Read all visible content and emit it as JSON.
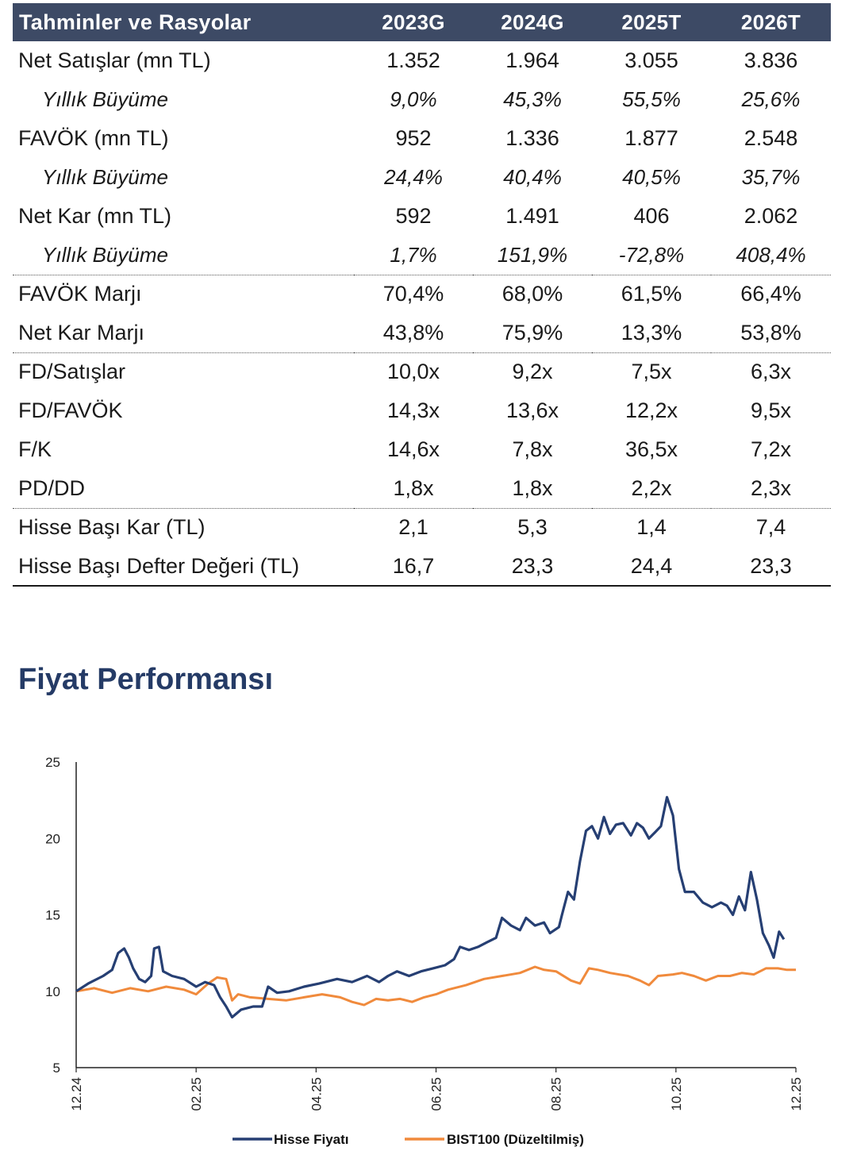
{
  "table": {
    "header": [
      "Tahminler ve Rasyolar",
      "2023G",
      "2024G",
      "2025T",
      "2026T"
    ],
    "rows": [
      {
        "label": "Net Satışlar (mn TL)",
        "values": [
          "1.352",
          "1.964",
          "3.055",
          "3.836"
        ]
      },
      {
        "label": "Yıllık Büyüme",
        "values": [
          "9,0%",
          "45,3%",
          "55,5%",
          "25,6%"
        ]
      },
      {
        "label": "FAVÖK (mn TL)",
        "values": [
          "952",
          "1.336",
          "1.877",
          "2.548"
        ]
      },
      {
        "label": "Yıllık Büyüme",
        "values": [
          "24,4%",
          "40,4%",
          "40,5%",
          "35,7%"
        ]
      },
      {
        "label": "Net Kar (mn TL)",
        "values": [
          "592",
          "1.491",
          "406",
          "2.062"
        ]
      },
      {
        "label": "Yıllık Büyüme",
        "values": [
          "1,7%",
          "151,9%",
          "-72,8%",
          "408,4%"
        ]
      },
      {
        "label": "FAVÖK Marjı",
        "values": [
          "70,4%",
          "68,0%",
          "61,5%",
          "66,4%"
        ]
      },
      {
        "label": "Net Kar Marjı",
        "values": [
          "43,8%",
          "75,9%",
          "13,3%",
          "53,8%"
        ]
      },
      {
        "label": "FD/Satışlar",
        "values": [
          "10,0x",
          "9,2x",
          "7,5x",
          "6,3x"
        ]
      },
      {
        "label": "FD/FAVÖK",
        "values": [
          "14,3x",
          "13,6x",
          "12,2x",
          "9,5x"
        ]
      },
      {
        "label": "F/K",
        "values": [
          "14,6x",
          "7,8x",
          "36,5x",
          "7,2x"
        ]
      },
      {
        "label": "PD/DD",
        "values": [
          "1,8x",
          "1,8x",
          "2,2x",
          "2,3x"
        ]
      },
      {
        "label": "Hisse Başı Kar (TL)",
        "values": [
          "2,1",
          "5,3",
          "1,4",
          "7,4"
        ]
      },
      {
        "label": "Hisse Başı Defter Değeri (TL)",
        "values": [
          "16,7",
          "23,3",
          "24,4",
          "23,3"
        ]
      }
    ]
  },
  "performance": {
    "title": "Fiyat Performansı"
  },
  "chart_data": {
    "type": "line",
    "title": "Fiyat Performansı",
    "xlabel": "",
    "ylabel": "",
    "ylim": [
      5,
      25
    ],
    "yticks": [
      5,
      10,
      15,
      20,
      25
    ],
    "xticks": [
      "12.24",
      "02.25",
      "04.25",
      "06.25",
      "08.25",
      "10.25",
      "12.25"
    ],
    "xlim": [
      0,
      12
    ],
    "legend_position": "bottom",
    "series": [
      {
        "name": "Hisse Fiyatı",
        "color": "#263f73",
        "points": [
          [
            0,
            10
          ],
          [
            0.2,
            10.5
          ],
          [
            0.45,
            11.0
          ],
          [
            0.6,
            11.4
          ],
          [
            0.7,
            12.5
          ],
          [
            0.8,
            12.8
          ],
          [
            0.88,
            12.2
          ],
          [
            0.95,
            11.5
          ],
          [
            1.05,
            10.8
          ],
          [
            1.15,
            10.6
          ],
          [
            1.25,
            11.0
          ],
          [
            1.3,
            12.8
          ],
          [
            1.38,
            12.9
          ],
          [
            1.45,
            11.3
          ],
          [
            1.6,
            11.0
          ],
          [
            1.8,
            10.8
          ],
          [
            2.0,
            10.3
          ],
          [
            2.15,
            10.6
          ],
          [
            2.3,
            10.4
          ],
          [
            2.4,
            9.6
          ],
          [
            2.5,
            9.0
          ],
          [
            2.6,
            8.3
          ],
          [
            2.75,
            8.8
          ],
          [
            2.95,
            9.0
          ],
          [
            3.1,
            9.0
          ],
          [
            3.2,
            10.3
          ],
          [
            3.35,
            9.9
          ],
          [
            3.55,
            10.0
          ],
          [
            3.8,
            10.3
          ],
          [
            4.05,
            10.5
          ],
          [
            4.35,
            10.8
          ],
          [
            4.6,
            10.6
          ],
          [
            4.85,
            11.0
          ],
          [
            5.05,
            10.6
          ],
          [
            5.2,
            11.0
          ],
          [
            5.35,
            11.3
          ],
          [
            5.55,
            11.0
          ],
          [
            5.75,
            11.3
          ],
          [
            5.95,
            11.5
          ],
          [
            6.15,
            11.7
          ],
          [
            6.3,
            12.1
          ],
          [
            6.4,
            12.9
          ],
          [
            6.55,
            12.7
          ],
          [
            6.7,
            12.9
          ],
          [
            6.85,
            13.2
          ],
          [
            7.0,
            13.5
          ],
          [
            7.1,
            14.8
          ],
          [
            7.25,
            14.3
          ],
          [
            7.4,
            14.0
          ],
          [
            7.5,
            14.8
          ],
          [
            7.65,
            14.3
          ],
          [
            7.8,
            14.5
          ],
          [
            7.9,
            13.8
          ],
          [
            8.05,
            14.2
          ],
          [
            8.1,
            15.0
          ],
          [
            8.2,
            16.5
          ],
          [
            8.3,
            16.0
          ],
          [
            8.4,
            18.5
          ],
          [
            8.5,
            20.5
          ],
          [
            8.6,
            20.8
          ],
          [
            8.7,
            20.0
          ],
          [
            8.8,
            21.4
          ],
          [
            8.9,
            20.3
          ],
          [
            9.0,
            20.9
          ],
          [
            9.12,
            21.0
          ],
          [
            9.25,
            20.2
          ],
          [
            9.35,
            21.0
          ],
          [
            9.45,
            20.7
          ],
          [
            9.55,
            20.0
          ],
          [
            9.65,
            20.4
          ],
          [
            9.75,
            20.8
          ],
          [
            9.85,
            22.7
          ],
          [
            9.95,
            21.5
          ],
          [
            10.05,
            18.0
          ],
          [
            10.15,
            16.5
          ],
          [
            10.3,
            16.5
          ],
          [
            10.45,
            15.8
          ],
          [
            10.6,
            15.5
          ],
          [
            10.75,
            15.8
          ],
          [
            10.85,
            15.6
          ],
          [
            10.95,
            15.0
          ],
          [
            11.05,
            16.2
          ],
          [
            11.15,
            15.3
          ],
          [
            11.25,
            17.8
          ],
          [
            11.35,
            16.0
          ],
          [
            11.45,
            13.8
          ],
          [
            11.55,
            13.0
          ],
          [
            11.63,
            12.2
          ],
          [
            11.72,
            13.9
          ],
          [
            11.8,
            13.4
          ]
        ]
      },
      {
        "name": "BIST100 (Düzeltilmiş)",
        "color": "#f08a3c",
        "points": [
          [
            0,
            10
          ],
          [
            0.3,
            10.2
          ],
          [
            0.6,
            9.9
          ],
          [
            0.9,
            10.2
          ],
          [
            1.2,
            10.0
          ],
          [
            1.5,
            10.3
          ],
          [
            1.8,
            10.1
          ],
          [
            2.0,
            9.8
          ],
          [
            2.2,
            10.5
          ],
          [
            2.35,
            10.9
          ],
          [
            2.5,
            10.8
          ],
          [
            2.6,
            9.4
          ],
          [
            2.7,
            9.8
          ],
          [
            2.9,
            9.6
          ],
          [
            3.2,
            9.5
          ],
          [
            3.5,
            9.4
          ],
          [
            3.8,
            9.6
          ],
          [
            4.1,
            9.8
          ],
          [
            4.4,
            9.6
          ],
          [
            4.6,
            9.3
          ],
          [
            4.8,
            9.1
          ],
          [
            5.0,
            9.5
          ],
          [
            5.2,
            9.4
          ],
          [
            5.4,
            9.5
          ],
          [
            5.6,
            9.3
          ],
          [
            5.8,
            9.6
          ],
          [
            6.0,
            9.8
          ],
          [
            6.2,
            10.1
          ],
          [
            6.5,
            10.4
          ],
          [
            6.8,
            10.8
          ],
          [
            7.1,
            11.0
          ],
          [
            7.4,
            11.2
          ],
          [
            7.65,
            11.6
          ],
          [
            7.8,
            11.4
          ],
          [
            8.0,
            11.3
          ],
          [
            8.25,
            10.7
          ],
          [
            8.4,
            10.5
          ],
          [
            8.55,
            11.5
          ],
          [
            8.7,
            11.4
          ],
          [
            8.9,
            11.2
          ],
          [
            9.2,
            11.0
          ],
          [
            9.4,
            10.7
          ],
          [
            9.55,
            10.4
          ],
          [
            9.7,
            11.0
          ],
          [
            9.95,
            11.1
          ],
          [
            10.1,
            11.2
          ],
          [
            10.3,
            11.0
          ],
          [
            10.5,
            10.7
          ],
          [
            10.7,
            11.0
          ],
          [
            10.9,
            11.0
          ],
          [
            11.1,
            11.2
          ],
          [
            11.3,
            11.1
          ],
          [
            11.5,
            11.5
          ],
          [
            11.7,
            11.5
          ],
          [
            11.85,
            11.4
          ],
          [
            12.0,
            11.4
          ]
        ]
      }
    ]
  }
}
